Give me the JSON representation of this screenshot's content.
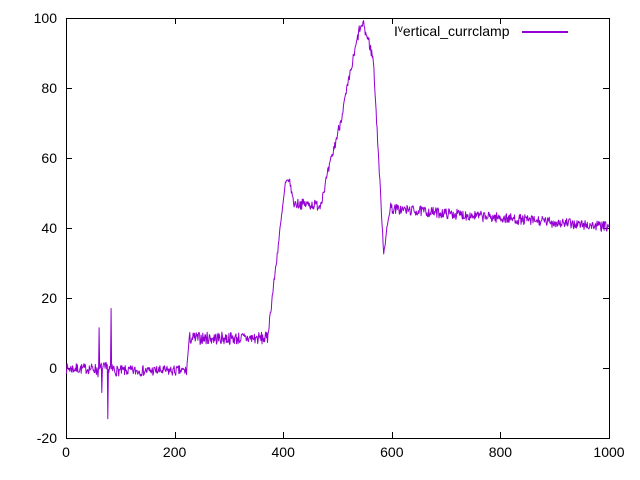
{
  "window": {
    "background": "#ffffff",
    "border_color": "#000000"
  },
  "legend": {
    "prefix": "I",
    "superscript": "v",
    "rest": "ertical_currclamp",
    "line_color": "#9400d3"
  },
  "chart_data": {
    "type": "line",
    "title": "",
    "xlabel": "",
    "ylabel": "",
    "xlim": [
      0,
      1000
    ],
    "ylim": [
      -20,
      100
    ],
    "xticks": [
      0,
      200,
      400,
      600,
      800,
      1000
    ],
    "yticks": [
      -20,
      0,
      20,
      40,
      60,
      80,
      100
    ],
    "grid": false,
    "legend_position": "top-right-inside",
    "series": [
      {
        "name": "Iᵛertical_currclamp",
        "color": "#9400d3",
        "sample_step": 1,
        "noise_seed": 7,
        "segments_format": [
          "x_start",
          "x_end",
          "y_start",
          "y_end",
          "noise_amplitude"
        ],
        "segments": [
          [
            0,
            55,
            -0.2,
            -0.2,
            1.5
          ],
          [
            55,
            90,
            -0.5,
            -0.5,
            2.2
          ],
          [
            90,
            222,
            -0.8,
            -0.8,
            1.5
          ],
          [
            222,
            227,
            -0.8,
            8.5,
            0.6
          ],
          [
            227,
            371,
            8.5,
            8.5,
            1.8
          ],
          [
            371,
            404,
            8.5,
            52.5,
            1.2
          ],
          [
            404,
            411,
            52.5,
            54.0,
            0.8
          ],
          [
            411,
            419,
            54.0,
            47.5,
            0.8
          ],
          [
            419,
            468,
            47.0,
            46.5,
            1.5
          ],
          [
            468,
            505,
            46.5,
            70.0,
            1.5
          ],
          [
            505,
            540,
            70.0,
            96.5,
            1.5
          ],
          [
            540,
            549,
            96.5,
            98.5,
            1.0
          ],
          [
            549,
            558,
            97.0,
            93.0,
            1.8
          ],
          [
            558,
            566,
            93.0,
            88.0,
            1.5
          ],
          [
            566,
            585,
            88.0,
            33.0,
            1.0
          ],
          [
            585,
            598,
            33.0,
            47.0,
            1.0
          ],
          [
            598,
            1000,
            45.5,
            40.3,
            1.5
          ]
        ],
        "spikes_format": [
          "x",
          "y"
        ],
        "spikes": [
          [
            61,
            11.5
          ],
          [
            66,
            -7.0
          ],
          [
            77,
            -14.5
          ],
          [
            83,
            17.0
          ]
        ]
      }
    ]
  }
}
